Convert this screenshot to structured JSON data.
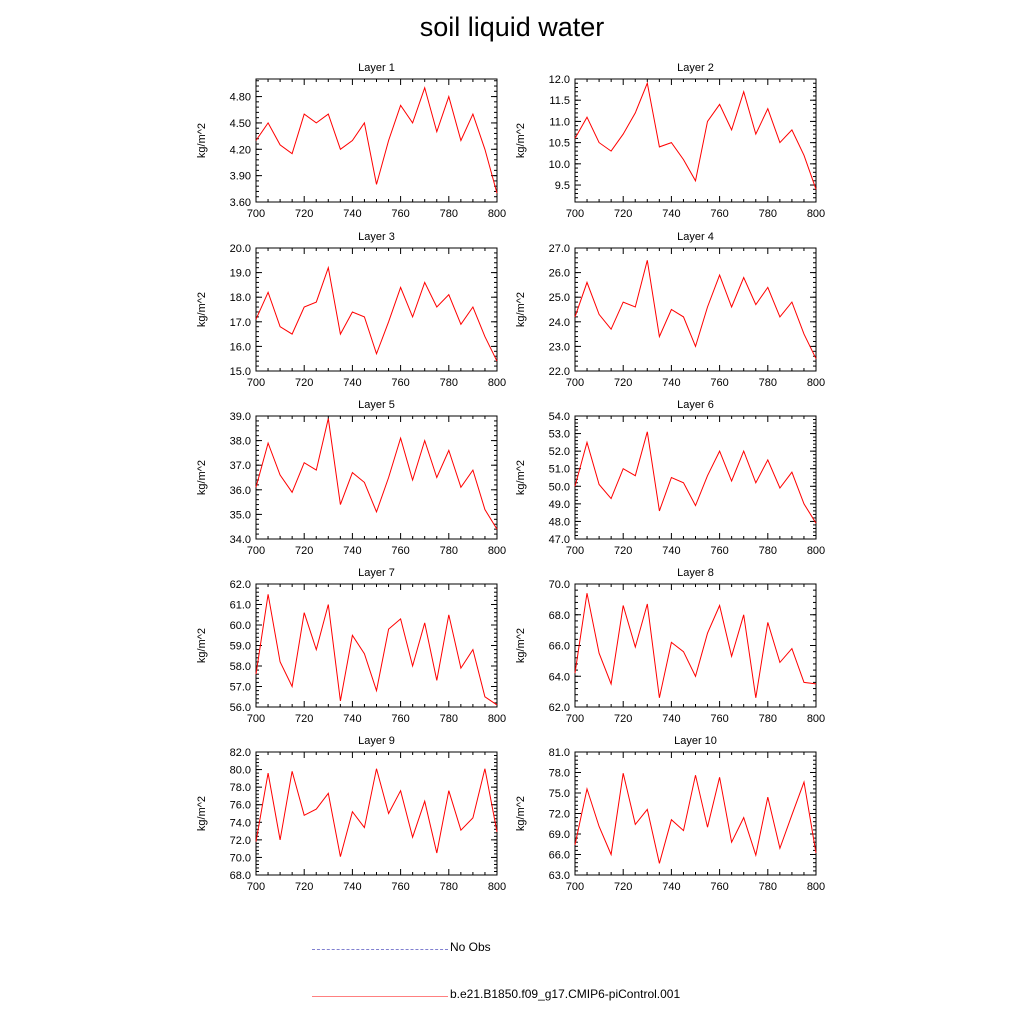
{
  "title": "soil liquid water",
  "legend": {
    "items": [
      {
        "label": "No Obs",
        "color": "#8080d0",
        "style": "dashed"
      },
      {
        "label": "b.e21.B1850.f09_g17.CMIP6-piControl.001",
        "color": "#ff0000",
        "style": "solid"
      }
    ]
  },
  "chart_data": [
    {
      "type": "line",
      "title": "Layer 1",
      "ylabel": "kg/m^2",
      "xlim": [
        700,
        800
      ],
      "ylim": [
        3.6,
        5.0
      ],
      "xticks": [
        700,
        720,
        740,
        760,
        780,
        800
      ],
      "yticks": [
        "3.60",
        "3.90",
        "4.20",
        "4.50",
        "4.80"
      ],
      "x": [
        700,
        705,
        710,
        715,
        720,
        725,
        730,
        735,
        740,
        745,
        750,
        755,
        760,
        765,
        770,
        775,
        780,
        785,
        790,
        795,
        800
      ],
      "series": [
        {
          "color": "#ff0000",
          "values": [
            4.3,
            4.5,
            4.25,
            4.15,
            4.6,
            4.5,
            4.6,
            4.2,
            4.3,
            4.5,
            3.8,
            4.3,
            4.7,
            4.5,
            4.9,
            4.4,
            4.8,
            4.3,
            4.6,
            4.2,
            3.7
          ]
        }
      ]
    },
    {
      "type": "line",
      "title": "Layer 2",
      "ylabel": "kg/m^2",
      "xlim": [
        700,
        800
      ],
      "ylim": [
        9.1,
        12.0
      ],
      "xticks": [
        700,
        720,
        740,
        760,
        780,
        800
      ],
      "yticks": [
        "9.5",
        "10.0",
        "10.5",
        "11.0",
        "11.5",
        "12.0"
      ],
      "x": [
        700,
        705,
        710,
        715,
        720,
        725,
        730,
        735,
        740,
        745,
        750,
        755,
        760,
        765,
        770,
        775,
        780,
        785,
        790,
        795,
        800
      ],
      "series": [
        {
          "color": "#ff0000",
          "values": [
            10.6,
            11.1,
            10.5,
            10.3,
            10.7,
            11.2,
            11.9,
            10.4,
            10.5,
            10.1,
            9.6,
            11.0,
            11.4,
            10.8,
            11.7,
            10.7,
            11.3,
            10.5,
            10.8,
            10.2,
            9.4
          ]
        }
      ]
    },
    {
      "type": "line",
      "title": "Layer 3",
      "ylabel": "kg/m^2",
      "xlim": [
        700,
        800
      ],
      "ylim": [
        15.0,
        20.0
      ],
      "xticks": [
        700,
        720,
        740,
        760,
        780,
        800
      ],
      "yticks": [
        "15.0",
        "16.0",
        "17.0",
        "18.0",
        "19.0",
        "20.0"
      ],
      "x": [
        700,
        705,
        710,
        715,
        720,
        725,
        730,
        735,
        740,
        745,
        750,
        755,
        760,
        765,
        770,
        775,
        780,
        785,
        790,
        795,
        800
      ],
      "series": [
        {
          "color": "#ff0000",
          "values": [
            17.1,
            18.2,
            16.8,
            16.5,
            17.6,
            17.8,
            19.2,
            16.5,
            17.4,
            17.2,
            15.7,
            17.0,
            18.4,
            17.2,
            18.6,
            17.6,
            18.1,
            16.9,
            17.6,
            16.4,
            15.4
          ]
        }
      ]
    },
    {
      "type": "line",
      "title": "Layer 4",
      "ylabel": "kg/m^2",
      "xlim": [
        700,
        800
      ],
      "ylim": [
        22.0,
        27.0
      ],
      "xticks": [
        700,
        720,
        740,
        760,
        780,
        800
      ],
      "yticks": [
        "22.0",
        "23.0",
        "24.0",
        "25.0",
        "26.0",
        "27.0"
      ],
      "x": [
        700,
        705,
        710,
        715,
        720,
        725,
        730,
        735,
        740,
        745,
        750,
        755,
        760,
        765,
        770,
        775,
        780,
        785,
        790,
        795,
        800
      ],
      "series": [
        {
          "color": "#ff0000",
          "values": [
            24.2,
            25.6,
            24.3,
            23.7,
            24.8,
            24.6,
            26.5,
            23.4,
            24.5,
            24.2,
            23.0,
            24.6,
            25.9,
            24.6,
            25.8,
            24.7,
            25.4,
            24.2,
            24.8,
            23.5,
            22.5
          ]
        }
      ]
    },
    {
      "type": "line",
      "title": "Layer 5",
      "ylabel": "kg/m^2",
      "xlim": [
        700,
        800
      ],
      "ylim": [
        34.0,
        39.0
      ],
      "xticks": [
        700,
        720,
        740,
        760,
        780,
        800
      ],
      "yticks": [
        "34.0",
        "35.0",
        "36.0",
        "37.0",
        "38.0",
        "39.0"
      ],
      "x": [
        700,
        705,
        710,
        715,
        720,
        725,
        730,
        735,
        740,
        745,
        750,
        755,
        760,
        765,
        770,
        775,
        780,
        785,
        790,
        795,
        800
      ],
      "series": [
        {
          "color": "#ff0000",
          "values": [
            36.1,
            37.9,
            36.6,
            35.9,
            37.1,
            36.8,
            38.9,
            35.4,
            36.7,
            36.3,
            35.1,
            36.5,
            38.1,
            36.4,
            38.0,
            36.5,
            37.6,
            36.1,
            36.8,
            35.2,
            34.4
          ]
        }
      ]
    },
    {
      "type": "line",
      "title": "Layer 6",
      "ylabel": "kg/m^2",
      "xlim": [
        700,
        800
      ],
      "ylim": [
        47.0,
        54.0
      ],
      "xticks": [
        700,
        720,
        740,
        760,
        780,
        800
      ],
      "yticks": [
        "47.0",
        "48.0",
        "49.0",
        "50.0",
        "51.0",
        "52.0",
        "53.0",
        "54.0"
      ],
      "x": [
        700,
        705,
        710,
        715,
        720,
        725,
        730,
        735,
        740,
        745,
        750,
        755,
        760,
        765,
        770,
        775,
        780,
        785,
        790,
        795,
        800
      ],
      "series": [
        {
          "color": "#ff0000",
          "values": [
            50.0,
            52.5,
            50.1,
            49.3,
            51.0,
            50.6,
            53.1,
            48.6,
            50.5,
            50.2,
            48.9,
            50.6,
            52.0,
            50.3,
            52.0,
            50.2,
            51.5,
            49.9,
            50.8,
            49.0,
            47.9
          ]
        }
      ]
    },
    {
      "type": "line",
      "title": "Layer 7",
      "ylabel": "kg/m^2",
      "xlim": [
        700,
        800
      ],
      "ylim": [
        56.0,
        62.0
      ],
      "xticks": [
        700,
        720,
        740,
        760,
        780,
        800
      ],
      "yticks": [
        "56.0",
        "57.0",
        "58.0",
        "59.0",
        "60.0",
        "61.0",
        "62.0"
      ],
      "x": [
        700,
        705,
        710,
        715,
        720,
        725,
        730,
        735,
        740,
        745,
        750,
        755,
        760,
        765,
        770,
        775,
        780,
        785,
        790,
        795,
        800
      ],
      "series": [
        {
          "color": "#ff0000",
          "values": [
            57.6,
            61.5,
            58.2,
            57.0,
            60.6,
            58.8,
            61.0,
            56.3,
            59.5,
            58.6,
            56.8,
            59.8,
            60.3,
            58.0,
            60.1,
            57.3,
            60.5,
            57.9,
            58.8,
            56.5,
            56.1
          ]
        }
      ]
    },
    {
      "type": "line",
      "title": "Layer 8",
      "ylabel": "kg/m^2",
      "xlim": [
        700,
        800
      ],
      "ylim": [
        62.0,
        70.0
      ],
      "xticks": [
        700,
        720,
        740,
        760,
        780,
        800
      ],
      "yticks": [
        "62.0",
        "64.0",
        "66.0",
        "68.0",
        "70.0"
      ],
      "x": [
        700,
        705,
        710,
        715,
        720,
        725,
        730,
        735,
        740,
        745,
        750,
        755,
        760,
        765,
        770,
        775,
        780,
        785,
        790,
        795,
        800
      ],
      "series": [
        {
          "color": "#ff0000",
          "values": [
            64.2,
            69.4,
            65.5,
            63.5,
            68.6,
            65.9,
            68.7,
            62.6,
            66.2,
            65.6,
            64.0,
            66.8,
            68.6,
            65.3,
            68.0,
            62.6,
            67.5,
            64.9,
            65.8,
            63.6,
            63.5
          ]
        }
      ]
    },
    {
      "type": "line",
      "title": "Layer 9",
      "ylabel": "kg/m^2",
      "xlim": [
        700,
        800
      ],
      "ylim": [
        68.0,
        82.0
      ],
      "xticks": [
        700,
        720,
        740,
        760,
        780,
        800
      ],
      "yticks": [
        "68.0",
        "70.0",
        "72.0",
        "74.0",
        "76.0",
        "78.0",
        "80.0",
        "82.0"
      ],
      "x": [
        700,
        705,
        710,
        715,
        720,
        725,
        730,
        735,
        740,
        745,
        750,
        755,
        760,
        765,
        770,
        775,
        780,
        785,
        790,
        795,
        800
      ],
      "series": [
        {
          "color": "#ff0000",
          "values": [
            71.8,
            79.6,
            72.0,
            79.8,
            74.8,
            75.5,
            77.3,
            70.1,
            75.2,
            73.4,
            80.1,
            75.0,
            77.6,
            72.3,
            76.4,
            70.5,
            77.6,
            73.1,
            74.5,
            80.1,
            72.9
          ]
        }
      ]
    },
    {
      "type": "line",
      "title": "Layer 10",
      "ylabel": "kg/m^2",
      "xlim": [
        700,
        800
      ],
      "ylim": [
        63.0,
        81.0
      ],
      "xticks": [
        700,
        720,
        740,
        760,
        780,
        800
      ],
      "yticks": [
        "63.0",
        "66.0",
        "69.0",
        "72.0",
        "75.0",
        "78.0",
        "81.0"
      ],
      "x": [
        700,
        705,
        710,
        715,
        720,
        725,
        730,
        735,
        740,
        745,
        750,
        755,
        760,
        765,
        770,
        775,
        780,
        785,
        790,
        795,
        800
      ],
      "series": [
        {
          "color": "#ff0000",
          "values": [
            67.4,
            75.6,
            70.1,
            66.0,
            77.9,
            70.4,
            72.6,
            64.7,
            71.1,
            69.5,
            77.6,
            70.0,
            77.3,
            67.8,
            71.4,
            65.9,
            74.4,
            66.9,
            71.8,
            76.6,
            66.2
          ]
        }
      ]
    }
  ]
}
